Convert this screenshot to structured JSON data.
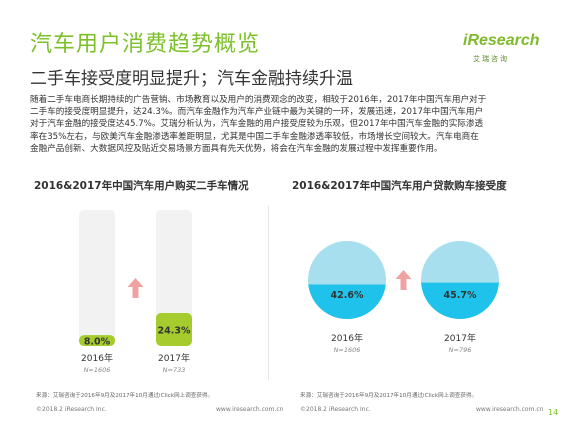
{
  "page": {
    "title": "汽车用户消费趋势概览",
    "subtitle": "二手车接受度明显提升；汽车金融持续升温",
    "logo": {
      "word": "iResearch",
      "sub": "艾瑞咨询"
    },
    "body_lines": [
      "随着二手车电商长期持续的广告营销、市场教育以及用户的消费观念的改变，相较于2016年，2017年中国汽车用户对于",
      "二手车的接受度明显提升，达24.3%。而汽车金融作为汽车产业链中最为关键的一环，发展迅速，2017年中国汽车用户",
      "对于汽车金融的接受度达45.7%。艾瑞分析认为，汽车金融的用户接受度较为乐观，但2017年中国汽车金融的实际渗透",
      "率在35%左右，与欧美汽车金融渗透率差距明显，尤其是中国二手车金融渗透率较低，市场增长空间较大。汽车电商在",
      "金融产品创新、大数据风控及贴近交易场景方面具有先天优势，将会在汽车金融的发展过程中发挥重要作用。"
    ],
    "source_left": "来源：艾瑞咨询于2016年9月及2017年10月通过iClick网上调查获得。",
    "source_right": "来源：艾瑞咨询于2016年9月及2017年10月通过iClick网上调查获得。",
    "footer_copyright": "©2018.2  iResearch Inc.",
    "footer_url": "www.iresearch.com.cn",
    "page_number": "14"
  },
  "colors": {
    "title_green": "#7dc12a",
    "bar_fill": "#a5cc2c",
    "bar_bg": "#f2f2f2",
    "pie_light": "#a7dfee",
    "pie_dark": "#1fc2ea",
    "arrow_red": "#f0a1a1"
  },
  "chart_data": [
    {
      "type": "bar",
      "title": "2016&2017年中国汽车用户购买二手车情况",
      "categories": [
        "2016年",
        "2017年"
      ],
      "samples": [
        "N=1606",
        "N=733"
      ],
      "values": [
        8.0,
        24.3
      ],
      "value_labels": [
        "8.0%",
        "24.3%"
      ],
      "ylim": [
        0,
        100
      ],
      "trend_icon": "up-arrow-icon"
    },
    {
      "type": "pie",
      "title": "2016&2017年中国汽车用户贷款购车接受度",
      "categories": [
        "2016年",
        "2017年"
      ],
      "samples": [
        "N=1606",
        "N=796"
      ],
      "values": [
        42.6,
        45.7
      ],
      "value_labels": [
        "42.6%",
        "45.7%"
      ],
      "trend_icon": "up-arrow-icon"
    }
  ]
}
